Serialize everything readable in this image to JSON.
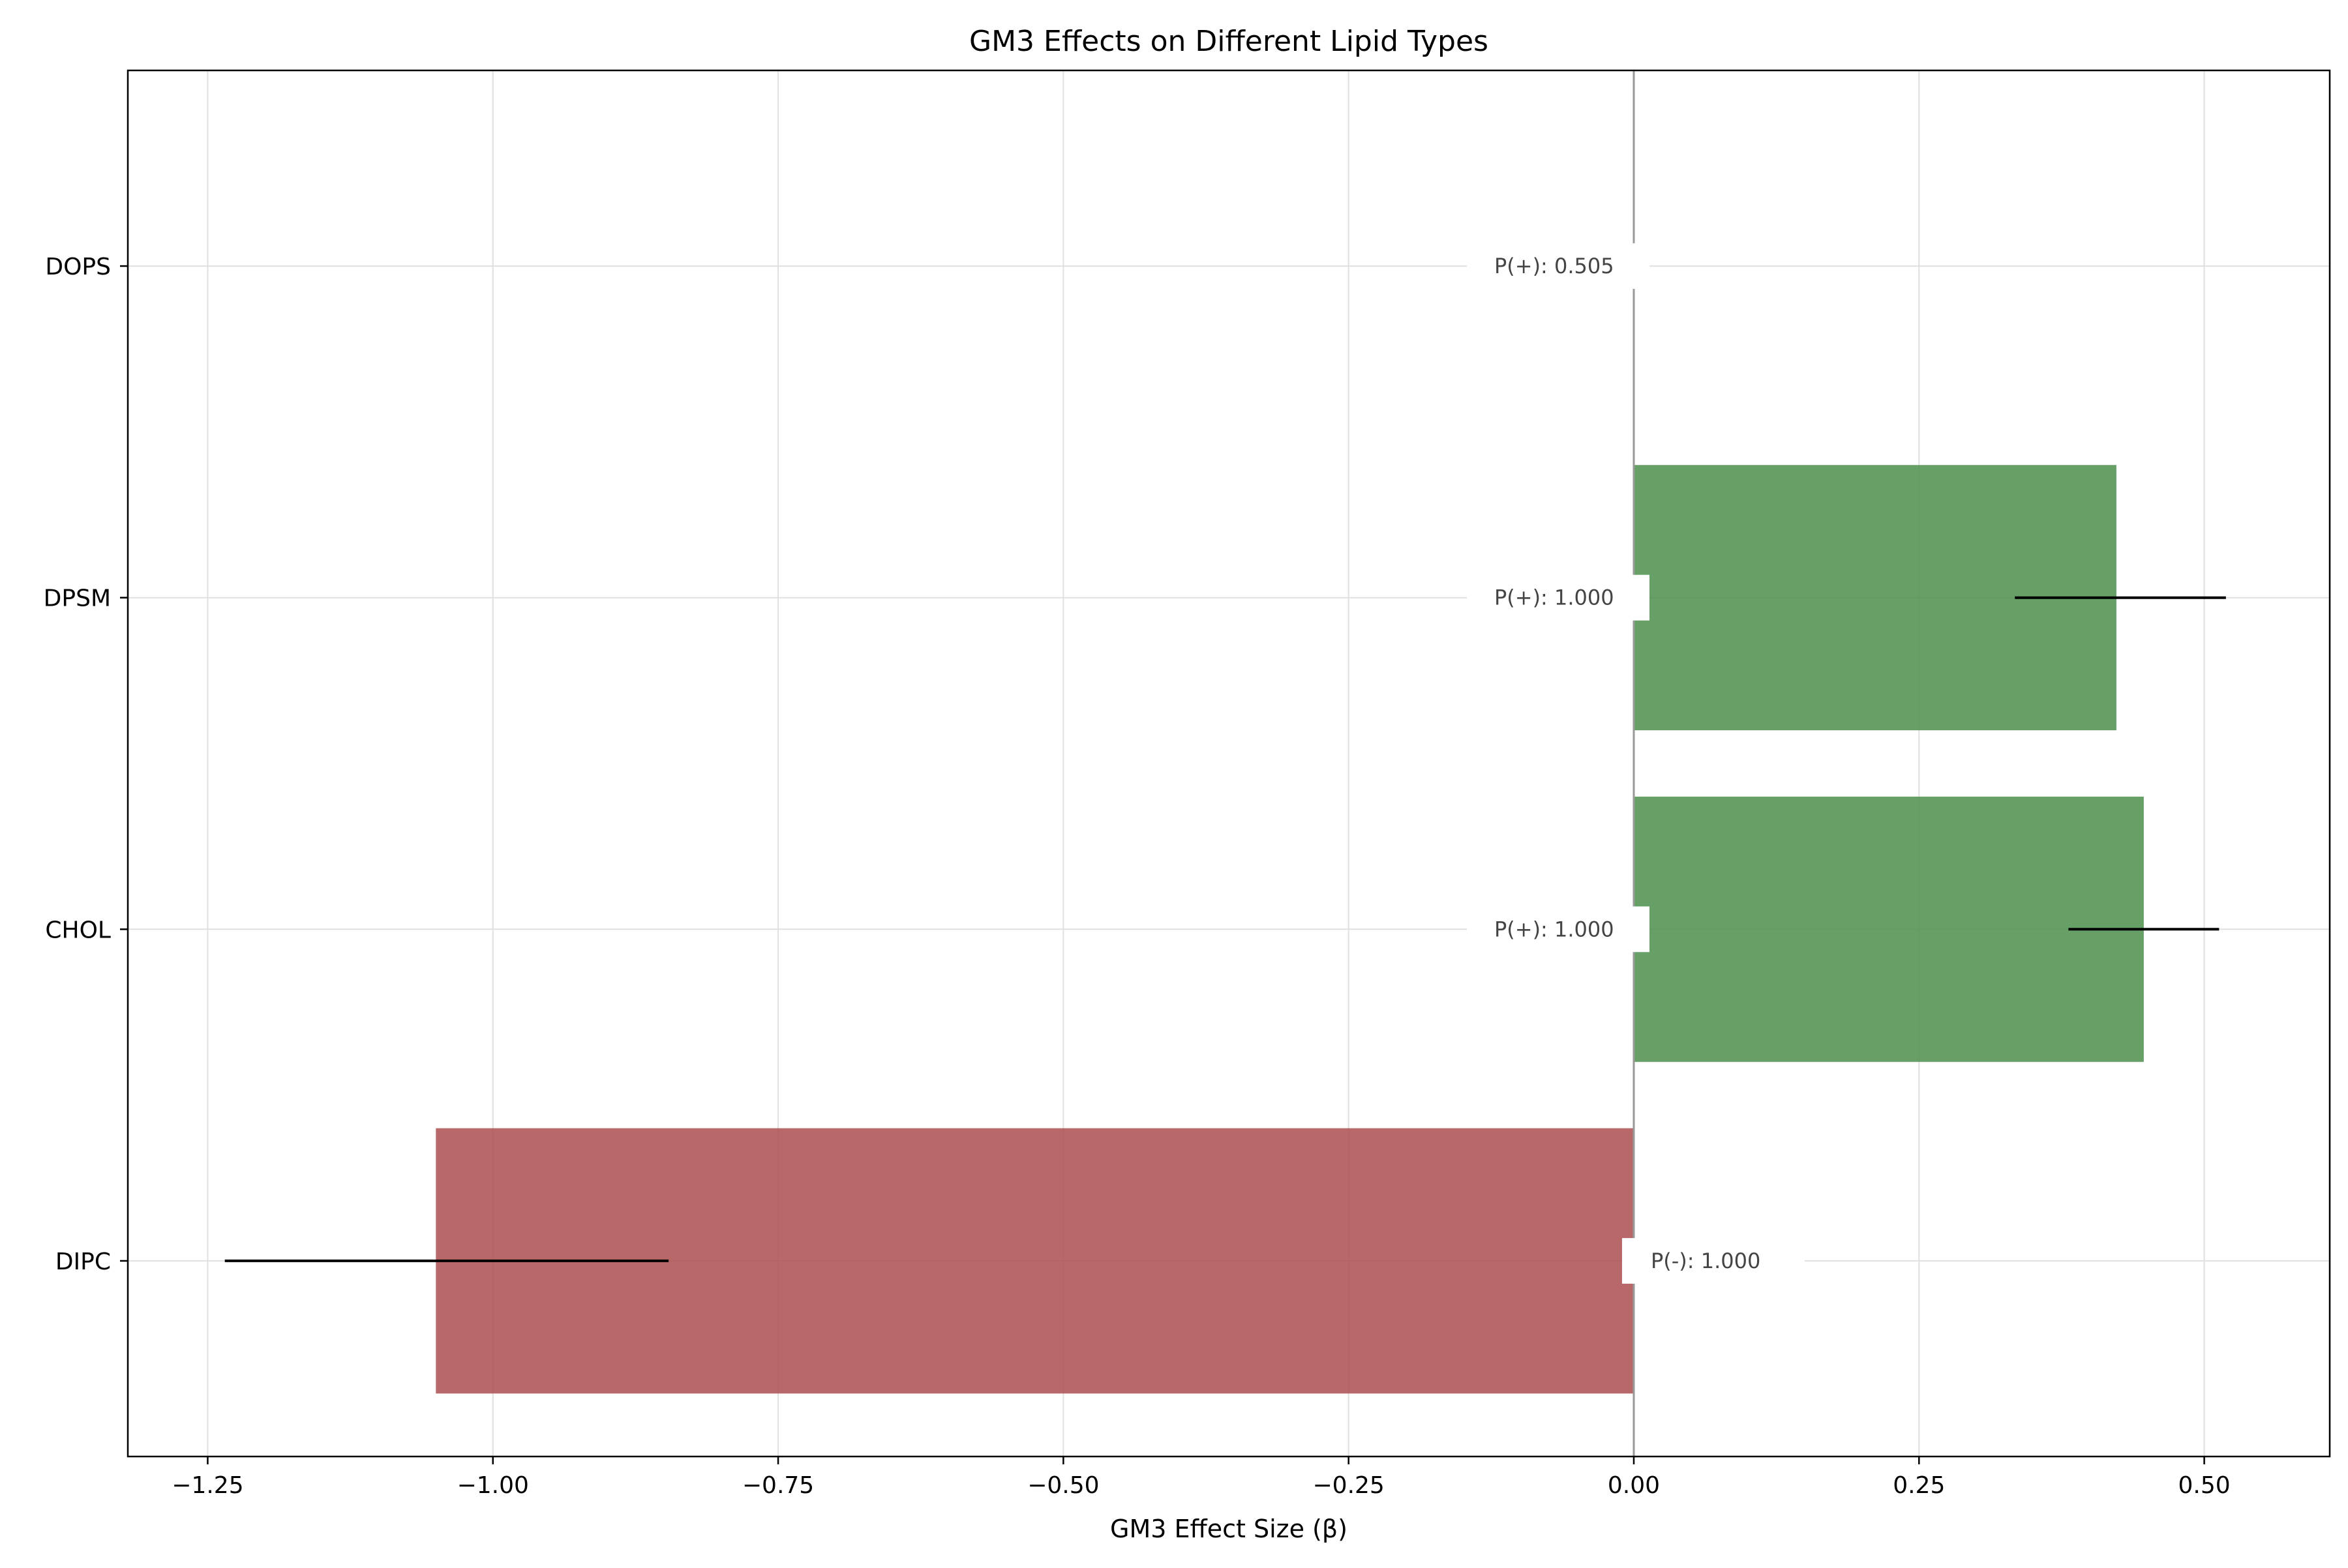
{
  "chart_data": {
    "type": "bar",
    "orientation": "horizontal",
    "title": "GM3 Effects on Different Lipid Types",
    "xlabel": "GM3 Effect Size (β)",
    "ylabel": "",
    "xlim": [
      -1.32,
      0.61
    ],
    "xticks": [
      -1.25,
      -1.0,
      -0.75,
      -0.5,
      -0.25,
      0.0,
      0.25,
      0.5
    ],
    "xtick_labels": [
      "−1.25",
      "−1.00",
      "−0.75",
      "−0.50",
      "−0.25",
      "0.00",
      "0.25",
      "0.50"
    ],
    "grid": true,
    "categories": [
      "DIPC",
      "CHOL",
      "DPSM",
      "DOPS"
    ],
    "values": [
      -1.05,
      0.447,
      0.423,
      0.0
    ],
    "error_low": [
      -1.235,
      0.381,
      0.334,
      null
    ],
    "error_high": [
      -0.846,
      0.513,
      0.519,
      null
    ],
    "probability_labels": [
      "P(-): 1.000",
      "P(+): 1.000",
      "P(+): 1.000",
      "P(+): 0.505"
    ],
    "colors": {
      "positive": "#4c8f4c",
      "negative": "#ab4e4e",
      "zero_line": "#999999",
      "grid": "#e0e0e0",
      "error_bar": "#000000",
      "annotation_text": "#444444"
    }
  }
}
